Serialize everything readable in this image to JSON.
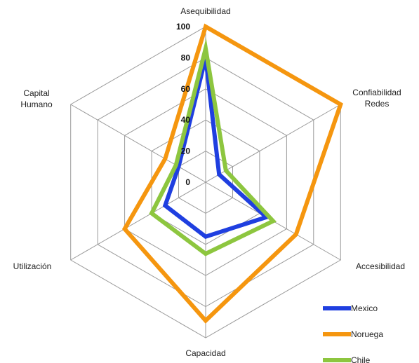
{
  "chart_data": {
    "type": "radar",
    "title": "",
    "categories": [
      "Asequibilidad",
      "Confiabilidad Redes",
      "Accesibilidad",
      "Capacidad",
      "Utilización",
      "Capital Humano"
    ],
    "category_lines": [
      [
        "Asequibilidad"
      ],
      [
        "Confiabilidad",
        "Redes"
      ],
      [
        "Accesibilidad"
      ],
      [
        "Capacidad"
      ],
      [
        "Utilización"
      ],
      [
        "Capital",
        "Humano"
      ]
    ],
    "r_range": [
      0,
      100
    ],
    "ticks": [
      0,
      20,
      40,
      60,
      80,
      100
    ],
    "grid": true,
    "legend_position": "bottom-right",
    "series": [
      {
        "name": "Mexico",
        "color": "#1f3fe0",
        "values": [
          80,
          10,
          45,
          35,
          30,
          20
        ]
      },
      {
        "name": "Noruega",
        "color": "#f5960f",
        "values": [
          100,
          100,
          67,
          89,
          60,
          30
        ]
      },
      {
        "name": "Chile",
        "color": "#8dc63f",
        "values": [
          86,
          15,
          50,
          46,
          40,
          22
        ]
      }
    ]
  }
}
